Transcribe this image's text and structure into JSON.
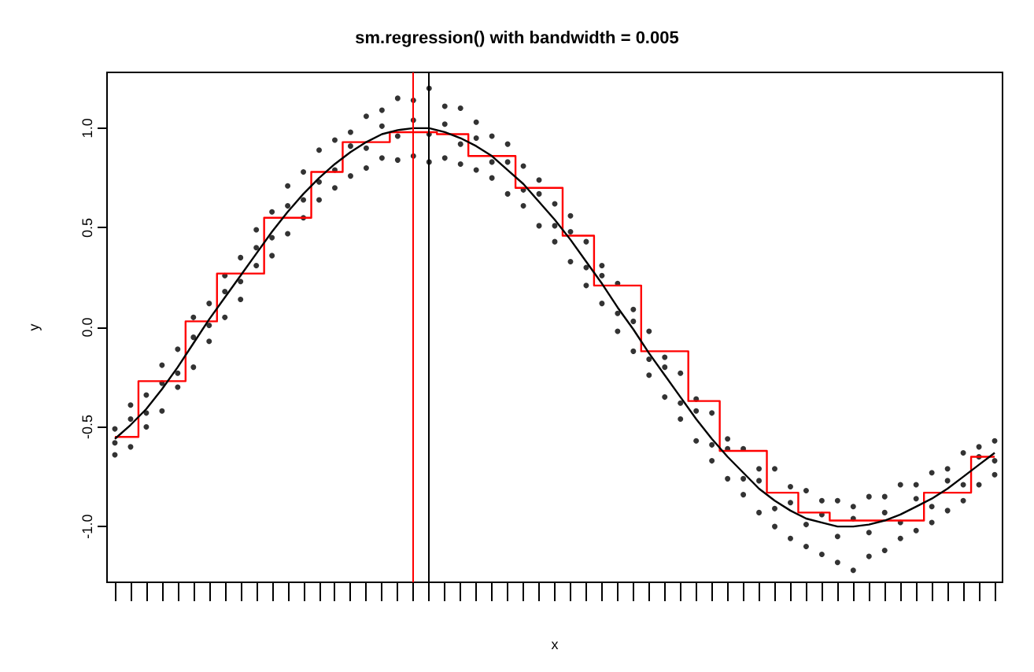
{
  "chart_data": {
    "type": "scatter",
    "title": "sm.regression() with bandwidth = 0.005",
    "xlabel": "x",
    "ylabel": "y",
    "categories": [
      null,
      null,
      null,
      null,
      null,
      null,
      null,
      null,
      null,
      null,
      null,
      null,
      null,
      null,
      null,
      null,
      null,
      null,
      null,
      null,
      null,
      null,
      null,
      null,
      null,
      null,
      null,
      null,
      null,
      null,
      null,
      null,
      null,
      null,
      null,
      null,
      null,
      null,
      null,
      null,
      null,
      null,
      null,
      null,
      null,
      null,
      null,
      null,
      null,
      null,
      null,
      null,
      null,
      null,
      null,
      null,
      null
    ],
    "series": [
      {
        "marker": "circle",
        "color": "#000000",
        "values": [
          -0.51,
          -0.39,
          -0.34,
          -0.19,
          -0.11,
          0.05,
          0.12,
          0.26,
          0.35,
          0.49,
          0.58,
          0.71,
          0.78,
          0.89,
          0.94,
          0.98,
          1.06,
          1.09,
          1.15,
          1.14,
          1.2,
          1.11,
          1.1,
          1.03,
          0.96,
          0.92,
          0.81,
          0.74,
          0.62,
          0.56,
          0.43,
          0.31,
          0.22,
          0.09,
          -0.02,
          -0.15,
          -0.23,
          -0.36,
          -0.43,
          -0.56,
          -0.61,
          -0.71,
          -0.71,
          -0.8,
          -0.82,
          -0.87,
          -0.87,
          -0.9,
          -0.85,
          -0.85,
          -0.79,
          -0.79,
          -0.73,
          -0.71,
          -0.63,
          -0.6,
          -0.57
        ]
      },
      {
        "marker": "circle",
        "color": "#000000",
        "values": [
          -0.58,
          -0.46,
          -0.43,
          -0.28,
          -0.23,
          -0.05,
          0.01,
          0.18,
          0.23,
          0.4,
          0.45,
          0.61,
          0.64,
          0.73,
          0.79,
          0.91,
          0.9,
          1.01,
          0.96,
          1.04,
          0.97,
          1.02,
          0.92,
          0.95,
          0.83,
          0.83,
          0.69,
          0.67,
          0.51,
          0.48,
          0.3,
          0.26,
          0.07,
          0.03,
          -0.16,
          -0.2,
          -0.38,
          -0.42,
          -0.59,
          -0.61,
          -0.76,
          -0.77,
          -0.91,
          -0.88,
          -0.99,
          -0.94,
          -1.05,
          -0.96,
          -1.03,
          -0.93,
          -0.98,
          -0.86,
          -0.9,
          -0.77,
          -0.79,
          -0.65,
          -0.67
        ]
      },
      {
        "marker": "circle",
        "color": "#000000",
        "values": [
          -0.64,
          -0.6,
          -0.5,
          -0.42,
          -0.3,
          -0.2,
          -0.07,
          0.05,
          0.14,
          0.31,
          0.36,
          0.47,
          0.55,
          0.64,
          0.7,
          0.76,
          0.8,
          0.85,
          0.84,
          0.86,
          0.83,
          0.85,
          0.82,
          0.79,
          0.75,
          0.67,
          0.61,
          0.51,
          0.43,
          0.33,
          0.21,
          0.12,
          -0.02,
          -0.12,
          -0.24,
          -0.35,
          -0.46,
          -0.57,
          -0.67,
          -0.76,
          -0.84,
          -0.93,
          -1.0,
          -1.06,
          -1.1,
          -1.14,
          -1.18,
          -1.22,
          -1.15,
          -1.12,
          -1.06,
          -1.02,
          -0.98,
          -0.92,
          -0.87,
          -0.79,
          -0.74
        ]
      },
      {
        "type": "step",
        "marker": "none",
        "color": "#ff0000",
        "values": [
          -0.55,
          -0.55,
          -0.27,
          -0.27,
          -0.27,
          0.03,
          0.03,
          0.27,
          0.27,
          0.27,
          0.55,
          0.55,
          0.55,
          0.78,
          0.78,
          0.93,
          0.93,
          0.93,
          0.98,
          0.98,
          0.98,
          0.97,
          0.97,
          0.86,
          0.86,
          0.86,
          0.7,
          0.7,
          0.7,
          0.46,
          0.46,
          0.21,
          0.21,
          0.21,
          -0.12,
          -0.12,
          -0.12,
          -0.37,
          -0.37,
          -0.62,
          -0.62,
          -0.62,
          -0.83,
          -0.83,
          -0.93,
          -0.93,
          -0.97,
          -0.97,
          -0.97,
          -0.97,
          -0.97,
          -0.97,
          -0.83,
          -0.83,
          -0.83,
          -0.65,
          -0.65
        ]
      },
      {
        "type": "line",
        "marker": "none",
        "color": "#000000",
        "values": [
          -0.56,
          -0.49,
          -0.41,
          -0.31,
          -0.2,
          -0.08,
          0.04,
          0.15,
          0.26,
          0.37,
          0.48,
          0.58,
          0.67,
          0.75,
          0.82,
          0.88,
          0.93,
          0.97,
          0.99,
          1.0,
          1.0,
          0.98,
          0.95,
          0.91,
          0.86,
          0.79,
          0.72,
          0.63,
          0.54,
          0.44,
          0.33,
          0.22,
          0.1,
          -0.01,
          -0.13,
          -0.24,
          -0.35,
          -0.46,
          -0.56,
          -0.65,
          -0.73,
          -0.81,
          -0.87,
          -0.92,
          -0.96,
          -0.98,
          -1.0,
          -1.0,
          -0.99,
          -0.97,
          -0.94,
          -0.9,
          -0.86,
          -0.81,
          -0.75,
          -0.69,
          -0.63
        ]
      }
    ],
    "ylim": [
      -1.28,
      1.28
    ],
    "yticks": [
      {
        "value": -1,
        "label": "-1.0"
      },
      {
        "value": -0.5,
        "label": "-0.5"
      },
      {
        "value": 0,
        "label": "0.0"
      },
      {
        "value": 0.5,
        "label": "0.5"
      },
      {
        "value": 1,
        "label": "1.0"
      }
    ],
    "tick_labels": "y",
    "grid": false,
    "line_style": "solid"
  }
}
